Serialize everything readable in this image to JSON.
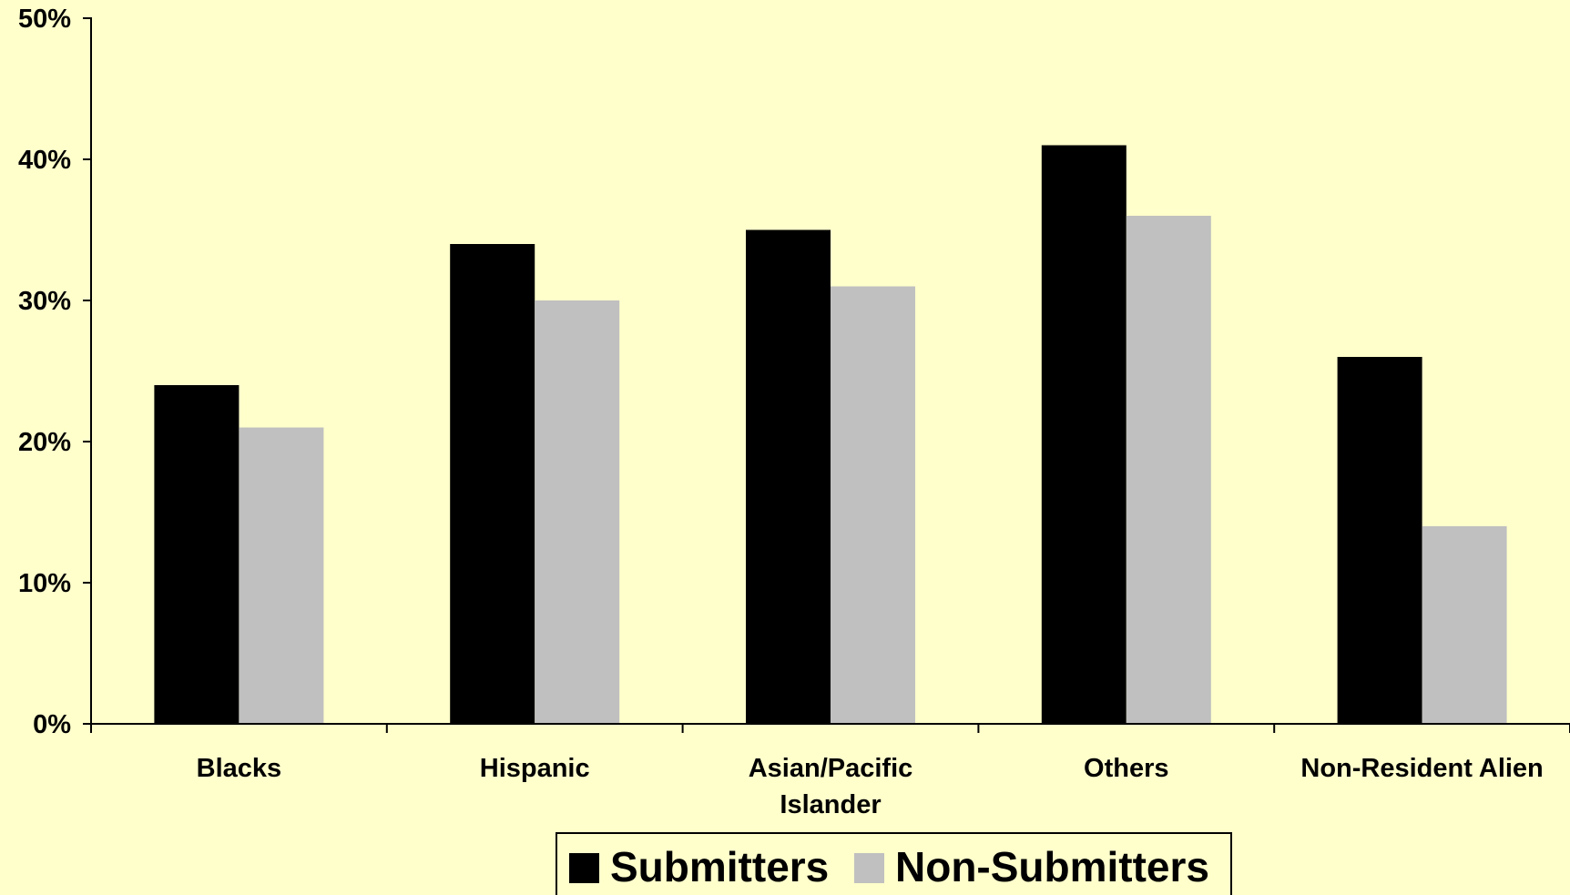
{
  "chart_data": {
    "type": "bar",
    "categories": [
      [
        "Blacks"
      ],
      [
        "Hispanic"
      ],
      [
        "Asian/Pacific",
        "Islander"
      ],
      [
        "Others"
      ],
      [
        "Non-Resident Alien"
      ]
    ],
    "series": [
      {
        "name": "Submitters",
        "color": "#000000",
        "values": [
          24,
          34,
          35,
          41,
          26
        ]
      },
      {
        "name": "Non-Submitters",
        "color": "#C0C0C0",
        "values": [
          21,
          30,
          31,
          36,
          14
        ]
      }
    ],
    "ylim": [
      0,
      50
    ],
    "yticks": [
      0,
      10,
      20,
      30,
      40,
      50
    ],
    "ytick_labels": [
      "0%",
      "10%",
      "20%",
      "30%",
      "40%",
      "50%"
    ],
    "grid": false,
    "legend_position": "bottom-center",
    "background_color": "#FFFFCC"
  }
}
